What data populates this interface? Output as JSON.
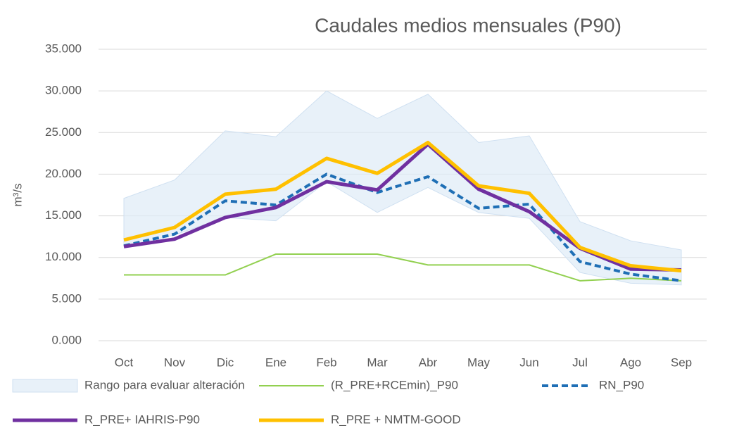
{
  "chart_data": {
    "type": "line",
    "title": "Caudales medios mensuales (P90)",
    "y_label": "m³/s",
    "categories": [
      "Oct",
      "Nov",
      "Dic",
      "Ene",
      "Feb",
      "Mar",
      "Abr",
      "May",
      "Jun",
      "Jul",
      "Ago",
      "Sep"
    ],
    "ylim": [
      0,
      35
    ],
    "yticks": [
      {
        "value": 0,
        "label": "0.000"
      },
      {
        "value": 5,
        "label": "5.000"
      },
      {
        "value": 10,
        "label": "10.000"
      },
      {
        "value": 15,
        "label": "15.000"
      },
      {
        "value": 20,
        "label": "20.000"
      },
      {
        "value": 25,
        "label": "25.000"
      },
      {
        "value": 30,
        "label": "30.000"
      },
      {
        "value": 35,
        "label": "35.000"
      }
    ],
    "grid": true,
    "series": [
      {
        "name": "Rango para evaluar alteración",
        "type": "area",
        "color": "#deebf7",
        "lower": [
          11.3,
          12.7,
          14.8,
          14.4,
          19.1,
          15.4,
          18.4,
          15.4,
          14.7,
          8.2,
          6.9,
          6.7
        ],
        "values": [
          17.1,
          19.3,
          25.2,
          24.5,
          30.0,
          26.7,
          29.6,
          23.8,
          24.6,
          14.3,
          12.0,
          10.9
        ]
      },
      {
        "name": "(R_PRE+RCEmin)_P90",
        "type": "line",
        "color": "#92d050",
        "width": 2,
        "values": [
          7.9,
          7.9,
          7.9,
          10.4,
          10.4,
          10.4,
          9.1,
          9.1,
          9.1,
          7.2,
          7.5,
          7.2
        ]
      },
      {
        "name": "RN_P90",
        "type": "line",
        "color": "#1f6fb5",
        "width": 4,
        "dash": true,
        "values": [
          11.4,
          12.8,
          16.8,
          16.3,
          20.0,
          17.8,
          19.7,
          15.9,
          16.4,
          9.5,
          8.0,
          7.2
        ]
      },
      {
        "name": "R_PRE+ IAHRIS-P90",
        "type": "line",
        "color": "#7030a0",
        "width": 5,
        "values": [
          11.3,
          12.2,
          14.8,
          16.0,
          19.1,
          18.1,
          23.6,
          18.2,
          15.5,
          11.1,
          8.6,
          8.5
        ]
      },
      {
        "name": "R_PRE + NMTM-GOOD",
        "type": "line",
        "color": "#ffc000",
        "width": 5,
        "values": [
          12.1,
          13.6,
          17.6,
          18.2,
          21.9,
          20.1,
          23.8,
          18.6,
          17.7,
          11.2,
          9.0,
          8.4
        ]
      }
    ]
  }
}
